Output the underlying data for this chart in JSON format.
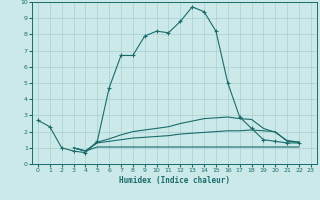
{
  "xlabel": "Humidex (Indice chaleur)",
  "xlim": [
    -0.5,
    23.5
  ],
  "ylim": [
    0,
    10
  ],
  "xticks": [
    0,
    1,
    2,
    3,
    4,
    5,
    6,
    7,
    8,
    9,
    10,
    11,
    12,
    13,
    14,
    15,
    16,
    17,
    18,
    19,
    20,
    21,
    22,
    23
  ],
  "yticks": [
    0,
    1,
    2,
    3,
    4,
    5,
    6,
    7,
    8,
    9,
    10
  ],
  "bg_color": "#cce9e9",
  "line_color": "#1a6b6b",
  "grid_color": "#aacfcf",
  "line1_x": [
    0,
    1,
    2,
    3,
    4,
    5,
    6,
    7,
    8,
    9,
    10,
    11,
    12,
    13,
    14,
    15,
    16,
    17,
    18,
    19,
    20,
    21,
    22
  ],
  "line1_y": [
    2.7,
    2.3,
    1.0,
    0.8,
    0.7,
    1.4,
    4.7,
    6.7,
    6.7,
    7.9,
    8.2,
    8.1,
    8.8,
    9.7,
    9.4,
    8.2,
    5.0,
    2.9,
    2.2,
    1.5,
    1.4,
    1.3,
    1.3
  ],
  "line2_x": [
    3,
    4,
    5,
    6,
    7,
    8,
    9,
    10,
    11,
    12,
    13,
    14,
    15,
    16,
    17,
    18,
    19,
    20,
    21,
    22
  ],
  "line2_y": [
    1.0,
    0.8,
    1.05,
    1.05,
    1.05,
    1.05,
    1.05,
    1.05,
    1.05,
    1.05,
    1.05,
    1.05,
    1.05,
    1.05,
    1.05,
    1.05,
    1.05,
    1.05,
    1.05,
    1.05
  ],
  "line3_x": [
    3,
    4,
    5,
    6,
    7,
    8,
    9,
    10,
    11,
    12,
    13,
    14,
    15,
    16,
    17,
    18,
    19,
    20,
    21,
    22
  ],
  "line3_y": [
    1.0,
    0.8,
    1.3,
    1.4,
    1.5,
    1.6,
    1.65,
    1.7,
    1.75,
    1.85,
    1.9,
    1.95,
    2.0,
    2.05,
    2.05,
    2.1,
    2.05,
    2.0,
    1.4,
    1.35
  ],
  "line4_x": [
    3,
    4,
    5,
    6,
    7,
    8,
    9,
    10,
    11,
    12,
    13,
    14,
    15,
    16,
    17,
    18,
    19,
    20,
    21,
    22
  ],
  "line4_y": [
    1.0,
    0.8,
    1.35,
    1.55,
    1.8,
    2.0,
    2.1,
    2.2,
    2.3,
    2.5,
    2.65,
    2.8,
    2.85,
    2.9,
    2.8,
    2.75,
    2.2,
    1.95,
    1.45,
    1.35
  ]
}
